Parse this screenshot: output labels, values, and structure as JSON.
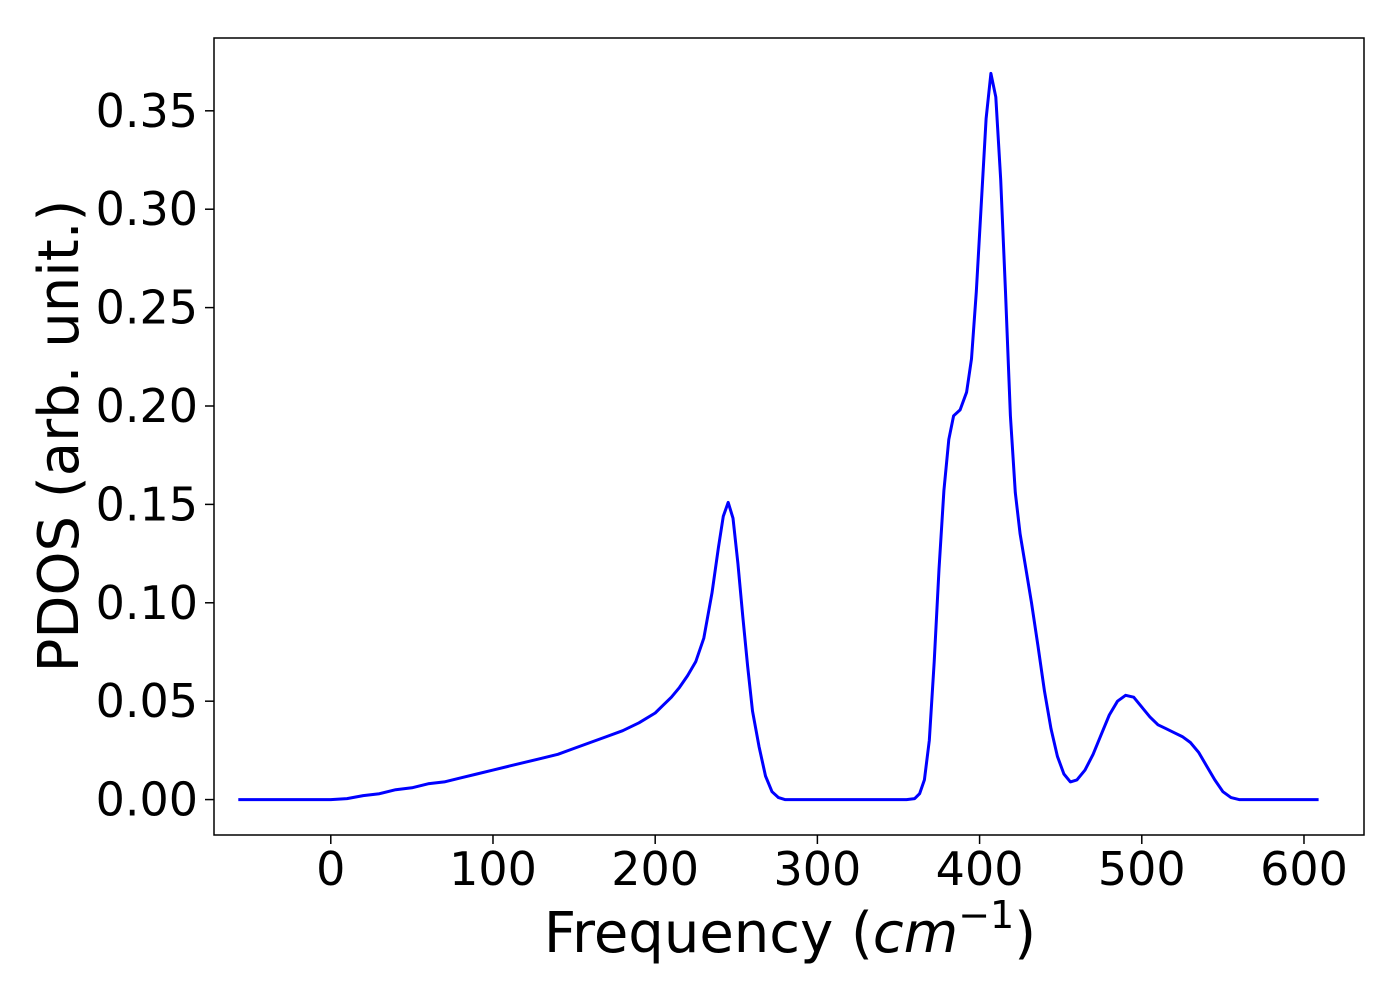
{
  "chart_data": {
    "type": "line",
    "title": "",
    "xlabel": "Frequency (",
    "xlabel_math": "cm",
    "xlabel_exp": "−1",
    "xlabel_close": ")",
    "ylabel": "PDOS (arb. unit.)",
    "xlim": [
      -72,
      637
    ],
    "ylim": [
      -0.018,
      0.387
    ],
    "x_ticks": [
      0,
      100,
      200,
      300,
      400,
      500,
      600
    ],
    "x_tick_labels": [
      "0",
      "100",
      "200",
      "300",
      "400",
      "500",
      "600"
    ],
    "y_ticks": [
      0.0,
      0.05,
      0.1,
      0.15,
      0.2,
      0.25,
      0.3,
      0.35
    ],
    "y_tick_labels": [
      "0.00",
      "0.05",
      "0.10",
      "0.15",
      "0.20",
      "0.25",
      "0.30",
      "0.35"
    ],
    "grid": false,
    "legend": "none",
    "series": [
      {
        "color": "#0000ff",
        "x": [
          -57,
          -40,
          -20,
          0,
          10,
          20,
          30,
          40,
          50,
          60,
          70,
          80,
          90,
          100,
          110,
          120,
          130,
          140,
          150,
          160,
          170,
          180,
          190,
          200,
          205,
          210,
          215,
          220,
          225,
          230,
          235,
          239,
          242,
          245,
          248,
          251,
          254,
          257,
          260,
          264,
          268,
          272,
          276,
          280,
          290,
          320,
          340,
          355,
          360,
          363,
          366,
          369,
          372,
          375,
          378,
          381,
          384,
          388,
          392,
          395,
          398,
          401,
          404,
          407,
          410,
          413,
          416,
          419,
          422,
          425,
          428,
          432,
          436,
          440,
          444,
          448,
          452,
          456,
          460,
          465,
          470,
          475,
          480,
          485,
          490,
          495,
          500,
          505,
          510,
          515,
          520,
          525,
          530,
          535,
          540,
          545,
          550,
          555,
          560,
          570,
          590,
          609
        ],
        "values": [
          0.0,
          0.0,
          0.0,
          0.0,
          0.0005,
          0.002,
          0.003,
          0.005,
          0.006,
          0.008,
          0.009,
          0.011,
          0.013,
          0.015,
          0.017,
          0.019,
          0.021,
          0.023,
          0.026,
          0.029,
          0.032,
          0.035,
          0.039,
          0.044,
          0.048,
          0.052,
          0.057,
          0.063,
          0.07,
          0.082,
          0.105,
          0.128,
          0.144,
          0.151,
          0.143,
          0.12,
          0.093,
          0.068,
          0.045,
          0.027,
          0.012,
          0.004,
          0.001,
          0.0,
          0.0,
          0.0,
          0.0,
          0.0,
          0.0005,
          0.003,
          0.01,
          0.03,
          0.07,
          0.117,
          0.157,
          0.183,
          0.195,
          0.198,
          0.207,
          0.224,
          0.258,
          0.302,
          0.346,
          0.369,
          0.357,
          0.315,
          0.258,
          0.195,
          0.156,
          0.135,
          0.12,
          0.1,
          0.078,
          0.055,
          0.036,
          0.022,
          0.013,
          0.009,
          0.01,
          0.015,
          0.023,
          0.033,
          0.043,
          0.05,
          0.053,
          0.052,
          0.047,
          0.042,
          0.038,
          0.036,
          0.034,
          0.032,
          0.029,
          0.024,
          0.017,
          0.01,
          0.004,
          0.001,
          0.0,
          0.0,
          0.0,
          0.0
        ]
      }
    ]
  }
}
